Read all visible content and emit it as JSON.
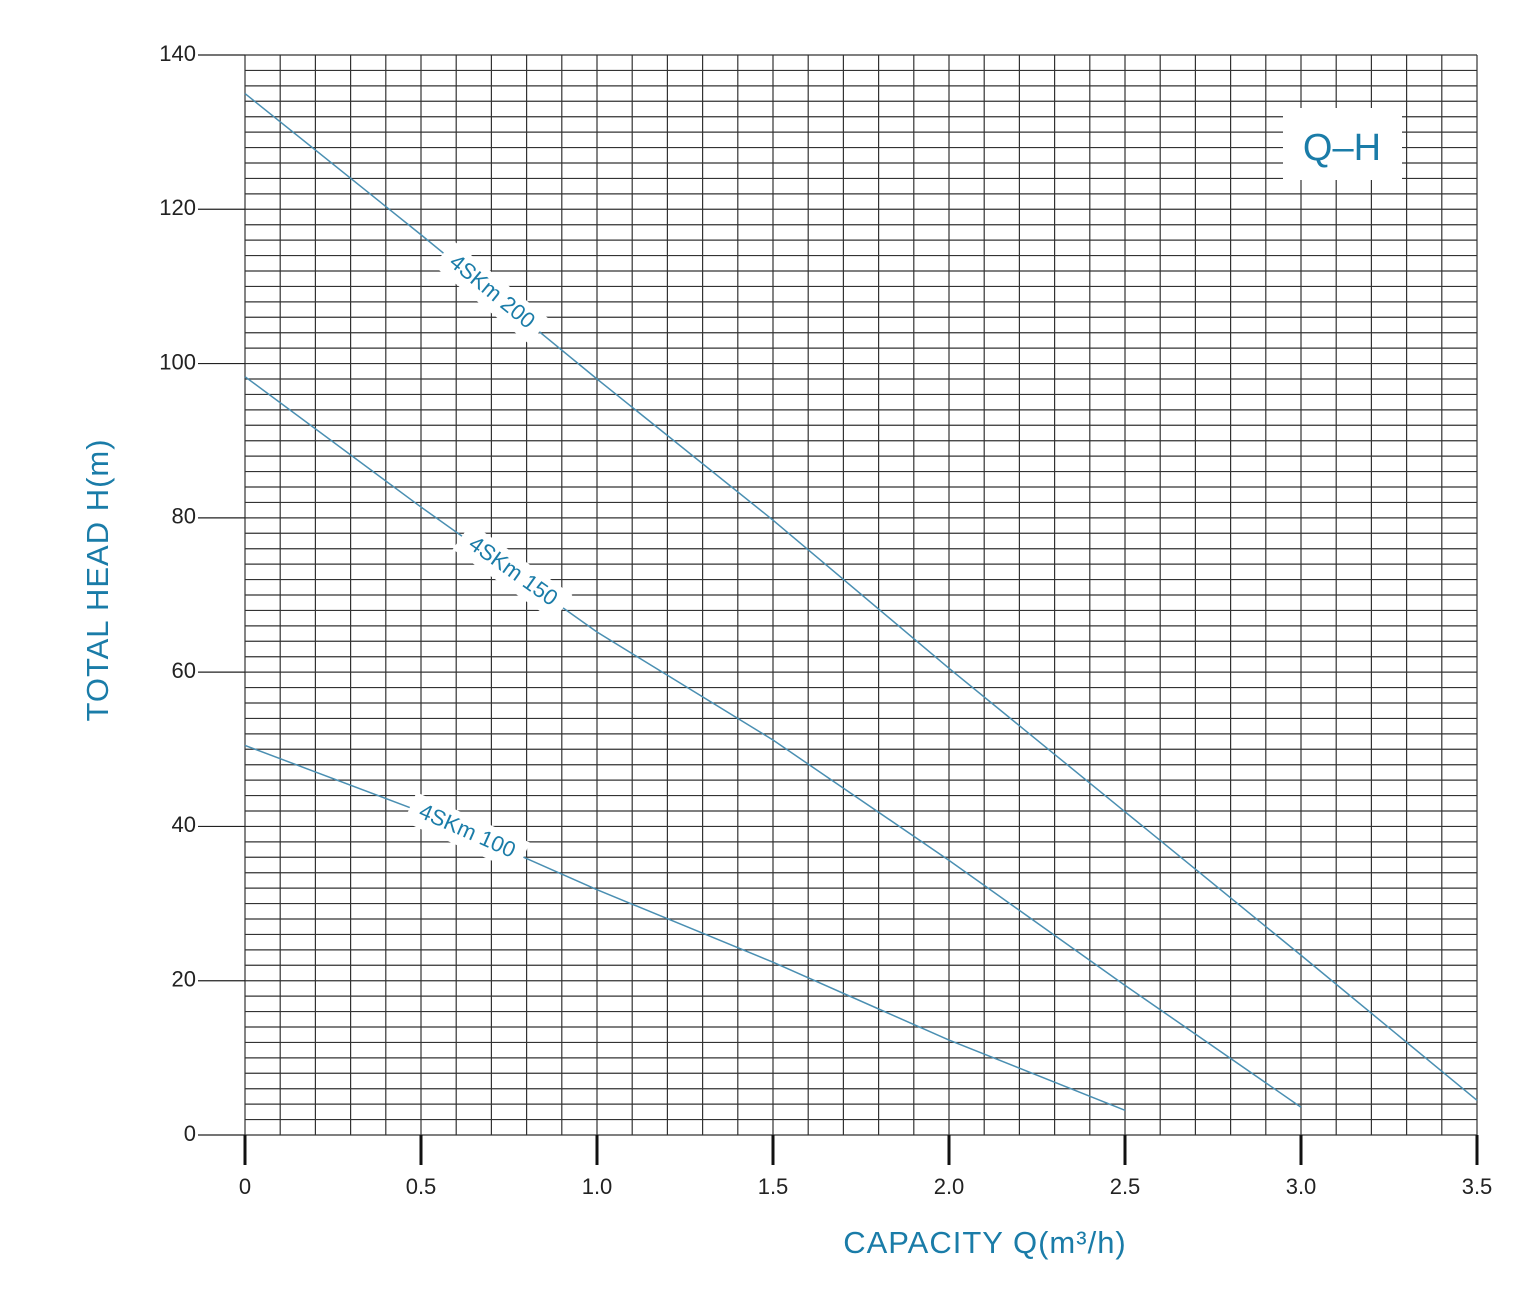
{
  "chart_data": {
    "type": "line",
    "annotation": "Q–H",
    "x_label": "CAPACITY Q(m³/h)",
    "y_label": "TOTAL HEAD H(m)",
    "x": [
      0,
      0.5,
      1,
      1.5,
      2,
      2.5,
      3,
      3.5
    ],
    "series": [
      {
        "name": "4SKm 200",
        "color": "#4a8fb2",
        "values": [
          135,
          116.7,
          98,
          79.7,
          60.5,
          41.9,
          23.3,
          4.5
        ]
      },
      {
        "name": "4SKm 150",
        "color": "#4a8fb2",
        "values": [
          98.3,
          81.4,
          65.2,
          51.2,
          35.6,
          19.4,
          3.6,
          null
        ]
      },
      {
        "name": "4SKm 100",
        "color": "#4a8fb2",
        "values": [
          50.5,
          41.9,
          31.8,
          22.4,
          12.3,
          3.2,
          null,
          null
        ]
      }
    ],
    "xlim": [
      0,
      3.5
    ],
    "ylim": [
      0,
      140
    ],
    "xticks": [
      0,
      0.5,
      {
        "value": 1,
        "label": "1.0"
      },
      1.5,
      {
        "value": 2,
        "label": "2.0"
      },
      2.5,
      {
        "value": 3,
        "label": "3.0"
      },
      3.5
    ],
    "yticks": [
      0,
      20,
      40,
      60,
      80,
      100,
      120,
      140
    ],
    "grid": {
      "x_step": 0.1,
      "y_step": 2
    }
  }
}
